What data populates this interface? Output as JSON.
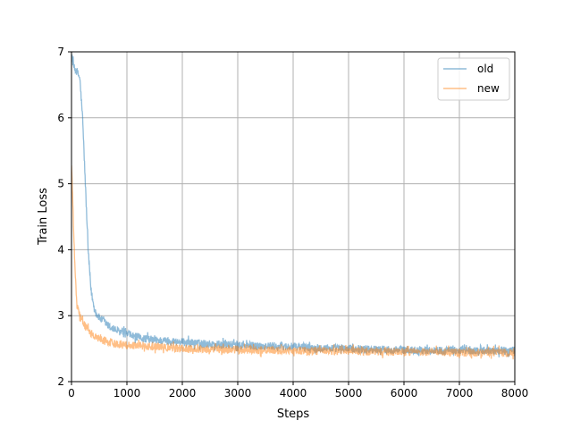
{
  "chart_data": {
    "type": "line",
    "xlabel": "Steps",
    "ylabel": "Train Loss",
    "xlim": [
      0,
      8000
    ],
    "ylim": [
      2,
      7
    ],
    "xticks": [
      0,
      1000,
      2000,
      3000,
      4000,
      5000,
      6000,
      7000,
      8000
    ],
    "yticks": [
      2,
      3,
      4,
      5,
      6,
      7
    ],
    "xtick_labels": [
      "0",
      "1000",
      "2000",
      "3000",
      "4000",
      "5000",
      "6000",
      "7000",
      "8000"
    ],
    "ytick_labels": [
      "2",
      "3",
      "4",
      "5",
      "6",
      "7"
    ],
    "grid": true,
    "legend": "top-right",
    "series": [
      {
        "name": "old",
        "color": "#1f77b4",
        "alpha": 0.5,
        "x": [
          0,
          50,
          100,
          150,
          200,
          250,
          300,
          350,
          400,
          450,
          500,
          600,
          700,
          800,
          1000,
          1200,
          1500,
          2000,
          2500,
          3000,
          4000,
          5000,
          6000,
          7000,
          8000
        ],
        "y": [
          6.95,
          6.75,
          6.7,
          6.6,
          6.0,
          5.0,
          4.0,
          3.4,
          3.15,
          3.02,
          2.97,
          2.9,
          2.82,
          2.78,
          2.72,
          2.67,
          2.63,
          2.6,
          2.57,
          2.55,
          2.53,
          2.5,
          2.48,
          2.47,
          2.47
        ],
        "noise": 0.06
      },
      {
        "name": "new",
        "color": "#ff7f0e",
        "alpha": 0.5,
        "x": [
          0,
          20,
          50,
          80,
          100,
          150,
          200,
          300,
          400,
          500,
          600,
          800,
          1000,
          1500,
          2000,
          3000,
          4000,
          5000,
          6000,
          7000,
          8000
        ],
        "y": [
          5.3,
          4.8,
          4.0,
          3.4,
          3.15,
          3.0,
          2.9,
          2.78,
          2.7,
          2.65,
          2.62,
          2.58,
          2.56,
          2.53,
          2.5,
          2.48,
          2.47,
          2.46,
          2.45,
          2.44,
          2.44
        ],
        "noise": 0.06
      }
    ]
  }
}
